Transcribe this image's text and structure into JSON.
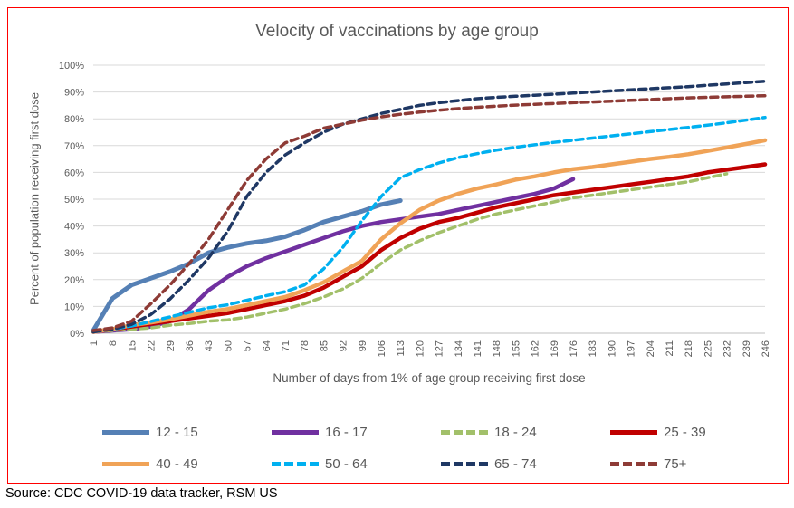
{
  "window": {
    "border_color": "#FF0000"
  },
  "source_note": "Source: CDC COVID-19 data tracker, RSM US",
  "chart_data": {
    "type": "line",
    "title": "Velocity of vaccinations by age group",
    "xlabel": "Number of days from 1% of age group receiving first dose",
    "ylabel": "Percent of population receiving first dose",
    "xlim": [
      1,
      246
    ],
    "ylim": [
      0,
      100
    ],
    "grid": "horizontal",
    "legend_position": "bottom",
    "colors": {
      "grid": "#D9D9D9",
      "axis": "#BFBFBF",
      "text": "#595959"
    },
    "x_ticks": [
      1,
      8,
      15,
      22,
      29,
      36,
      43,
      50,
      57,
      64,
      71,
      78,
      85,
      92,
      99,
      106,
      113,
      120,
      127,
      134,
      141,
      148,
      155,
      162,
      169,
      176,
      183,
      190,
      197,
      204,
      211,
      218,
      225,
      232,
      239,
      246
    ],
    "y_ticks_percent": [
      0,
      10,
      20,
      30,
      40,
      50,
      60,
      70,
      80,
      90,
      100
    ],
    "series": [
      {
        "name": "12 - 15",
        "color": "#5580B5",
        "style": "solid",
        "days": [
          1,
          8,
          15,
          22,
          29,
          36,
          43,
          50,
          57,
          64,
          71,
          78,
          85,
          92,
          99,
          106,
          113
        ],
        "values": [
          1,
          13,
          18,
          20.5,
          23,
          26,
          30,
          32,
          33.5,
          34.5,
          36,
          38.5,
          41.5,
          43.5,
          45.5,
          48,
          49.5
        ]
      },
      {
        "name": "16 - 17",
        "color": "#7030A0",
        "style": "solid",
        "days": [
          1,
          8,
          15,
          22,
          29,
          36,
          43,
          50,
          57,
          64,
          71,
          78,
          85,
          92,
          99,
          106,
          113,
          120,
          127,
          134,
          141,
          148,
          155,
          162,
          169,
          176
        ],
        "values": [
          0.5,
          1,
          1.5,
          2.5,
          4.5,
          9,
          16,
          21,
          25,
          28,
          30.5,
          33,
          35.5,
          38,
          40,
          41.5,
          42.5,
          43.5,
          44.5,
          46,
          47.5,
          49,
          50.5,
          52,
          54,
          57.5
        ]
      },
      {
        "name": "18 - 24",
        "color": "#A2C06A",
        "style": "dashed",
        "days": [
          1,
          8,
          15,
          22,
          29,
          36,
          43,
          50,
          57,
          64,
          71,
          78,
          85,
          92,
          99,
          106,
          113,
          120,
          127,
          134,
          141,
          148,
          155,
          162,
          169,
          176,
          183,
          190,
          197,
          204,
          211,
          218,
          225,
          232
        ],
        "values": [
          0.5,
          1,
          1.5,
          2,
          3,
          3.6,
          4.5,
          5,
          6,
          7.5,
          9,
          11,
          13.5,
          16.5,
          20.5,
          26,
          31,
          34.5,
          37.5,
          40,
          42.5,
          44.5,
          46,
          47.5,
          49,
          50.5,
          51.5,
          52.5,
          53.5,
          54.5,
          55.5,
          56.5,
          58,
          59.5
        ]
      },
      {
        "name": "25 - 39",
        "color": "#C00000",
        "style": "solid",
        "days": [
          1,
          8,
          15,
          22,
          29,
          36,
          43,
          50,
          57,
          64,
          71,
          78,
          85,
          92,
          99,
          106,
          113,
          120,
          127,
          134,
          141,
          148,
          155,
          162,
          169,
          176,
          183,
          190,
          197,
          204,
          211,
          218,
          225,
          232,
          239,
          246
        ],
        "values": [
          0.5,
          1.5,
          2.5,
          3.5,
          4.5,
          5.5,
          6.5,
          7.5,
          9,
          10.5,
          12,
          14,
          17,
          21,
          25,
          31,
          35.5,
          39,
          41.5,
          43,
          45,
          47,
          48.5,
          50,
          51.5,
          52.5,
          53.5,
          54.5,
          55.5,
          56.5,
          57.5,
          58.5,
          60,
          61,
          62,
          63
        ]
      },
      {
        "name": "40 - 49",
        "color": "#F0A357",
        "style": "solid",
        "days": [
          1,
          8,
          15,
          22,
          29,
          36,
          43,
          50,
          57,
          64,
          71,
          78,
          85,
          92,
          99,
          106,
          113,
          120,
          127,
          134,
          141,
          148,
          155,
          162,
          169,
          176,
          183,
          190,
          197,
          204,
          211,
          218,
          225,
          232,
          239,
          246
        ],
        "values": [
          0.5,
          1.5,
          3,
          4,
          5.2,
          6.6,
          8,
          9,
          10.5,
          12,
          13.5,
          16,
          19,
          23,
          27,
          35,
          41,
          46,
          49.5,
          52,
          54,
          55.5,
          57.3,
          58.5,
          60,
          61.2,
          62,
          63,
          64,
          65,
          65.8,
          66.8,
          68,
          69.3,
          70.6,
          72
        ]
      },
      {
        "name": "50 - 64",
        "color": "#00B0F0",
        "style": "dashed",
        "days": [
          1,
          8,
          15,
          22,
          29,
          36,
          43,
          50,
          57,
          64,
          71,
          78,
          85,
          92,
          99,
          106,
          113,
          120,
          127,
          134,
          141,
          148,
          155,
          162,
          169,
          176,
          183,
          190,
          197,
          204,
          211,
          218,
          225,
          232,
          239,
          246
        ],
        "values": [
          0.5,
          1.5,
          2.7,
          4.4,
          6.1,
          7.8,
          9.5,
          10.6,
          12.3,
          14,
          15.5,
          18,
          24,
          32,
          42,
          51,
          58,
          61,
          63.5,
          65.5,
          67,
          68.3,
          69.4,
          70.3,
          71.2,
          72,
          72.8,
          73.6,
          74.4,
          75.2,
          76,
          76.8,
          77.6,
          78.5,
          79.5,
          80.5
        ]
      },
      {
        "name": "65 - 74",
        "color": "#1F3864",
        "style": "dashed",
        "days": [
          1,
          8,
          15,
          22,
          29,
          36,
          43,
          50,
          57,
          64,
          71,
          78,
          85,
          92,
          99,
          106,
          113,
          120,
          127,
          134,
          141,
          148,
          155,
          162,
          169,
          176,
          183,
          190,
          197,
          204,
          211,
          218,
          225,
          232,
          239,
          246
        ],
        "values": [
          0.5,
          1.5,
          3.3,
          7,
          12.8,
          20,
          28,
          38,
          51,
          60,
          66.5,
          71,
          75,
          78,
          80,
          82,
          83.5,
          85,
          86,
          86.8,
          87.5,
          88,
          88.4,
          88.8,
          89.2,
          89.6,
          90,
          90.4,
          90.8,
          91.2,
          91.6,
          92,
          92.5,
          93,
          93.5,
          94
        ]
      },
      {
        "name": "75+",
        "color": "#8E3B36",
        "style": "dashed",
        "days": [
          1,
          8,
          15,
          22,
          29,
          36,
          43,
          50,
          57,
          64,
          71,
          78,
          85,
          92,
          99,
          106,
          113,
          120,
          127,
          134,
          141,
          148,
          155,
          162,
          169,
          176,
          183,
          190,
          197,
          204,
          211,
          218,
          225,
          232,
          239,
          246
        ],
        "values": [
          1,
          2,
          4.5,
          11,
          18,
          26,
          35,
          46,
          57,
          65,
          71,
          73.5,
          76.5,
          78,
          79.5,
          80.7,
          81.7,
          82.5,
          83.2,
          83.8,
          84.3,
          84.7,
          85.1,
          85.4,
          85.7,
          86,
          86.3,
          86.6,
          86.9,
          87.2,
          87.5,
          87.8,
          88,
          88.2,
          88.4,
          88.6
        ]
      }
    ]
  }
}
